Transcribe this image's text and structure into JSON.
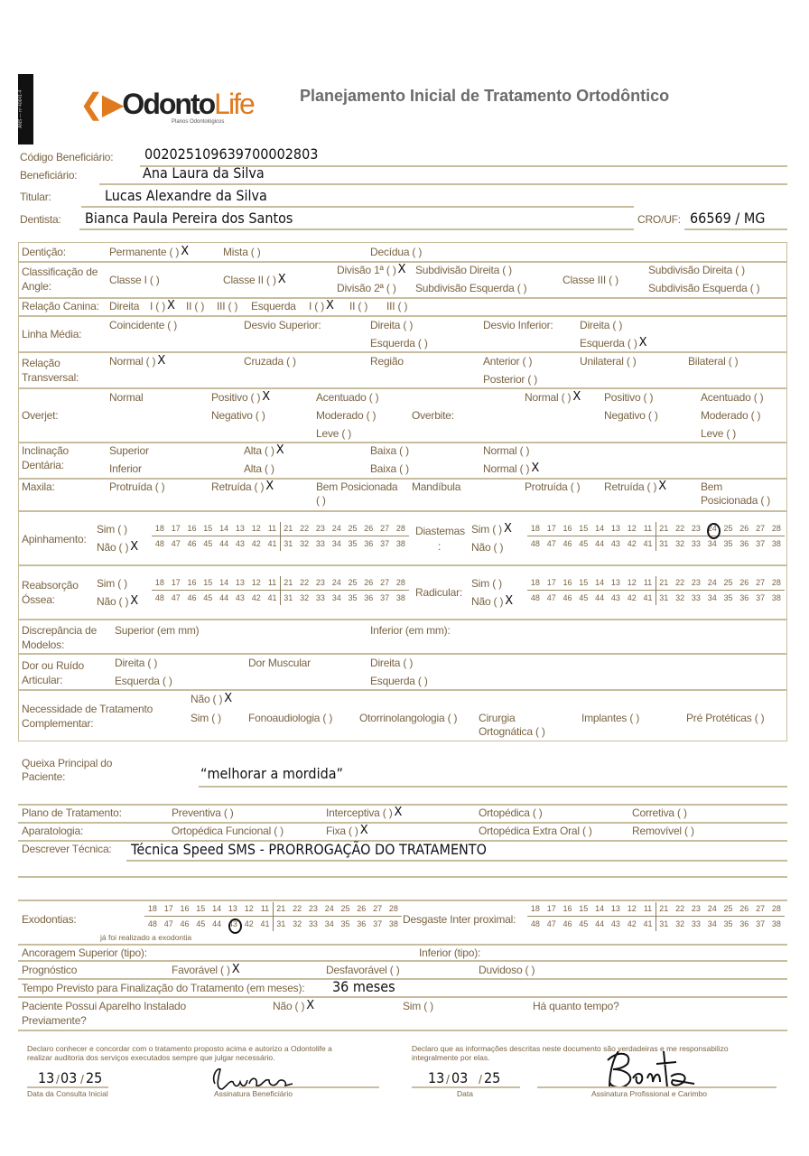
{
  "header": {
    "ans": "ANS — nº 40641-4",
    "logo": "OdontoLife",
    "logo_sub": "Planos Odontológicos",
    "title": "Planejamento Inicial de Tratamento Ortodôntico"
  },
  "fields": {
    "codigo_label": "Código Beneficiário:",
    "codigo": "002025109639700002803",
    "beneficiario_label": "Beneficiário:",
    "beneficiario": "Ana Laura da Silva",
    "titular_label": "Titular:",
    "titular": "Lucas Alexandre da Silva",
    "dentista_label": "Dentista:",
    "dentista": "Bianca Paula Pereira dos Santos",
    "cro_label": "CRO/UF:",
    "cro": "66569 / MG"
  },
  "mark": "X",
  "teeth": {
    "upper": [
      "18",
      "17",
      "16",
      "15",
      "14",
      "13",
      "12",
      "11",
      "21",
      "22",
      "23",
      "24",
      "25",
      "26",
      "27",
      "28"
    ],
    "lower": [
      "48",
      "47",
      "46",
      "45",
      "44",
      "43",
      "42",
      "41",
      "31",
      "32",
      "33",
      "34",
      "35",
      "36",
      "37",
      "38"
    ]
  },
  "exam": {
    "denticao": {
      "label": "Dentição:",
      "o1": "Permanente (  )",
      "o2": "Mista (  )",
      "o3": "Decídua (  )"
    },
    "angle": {
      "label1": "Classificação de",
      "label2": "Angle:",
      "c1": "Classe I (  )",
      "c2": "Classe II (  )",
      "d1": "Divisão 1ª (  )",
      "sd1": "Subdivisão Direita (  )",
      "d2": "Divisão 2ª (  )",
      "se1": "Subdivisão Esquerda (  )",
      "c3": "Classe III (  )",
      "sd2": "Subdivisão Direita (  )",
      "se2": "Subdivisão Esquerda (  )"
    },
    "canina": {
      "label": "Relação Canina:",
      "dir": "Direita",
      "d1": "I (  )",
      "d2": "II (  )",
      "d3": "III (  )",
      "esq": "Esquerda",
      "e1": "I (  )",
      "e2": "II (  )",
      "e3": "III (  )"
    },
    "linha": {
      "label": "Linha Média:",
      "coinc": "Coincidente (  )",
      "dsup": "Desvio Superior:",
      "dsup_d": "Direita (  )",
      "dsup_e": "Esquerda (  )",
      "dinf": "Desvio Inferior:",
      "dinf_d": "Direita (  )",
      "dinf_e": "Esquerda (  )"
    },
    "transversal": {
      "label1": "Relação",
      "label2": "Transversal:",
      "normal": "Normal (  )",
      "cruzada": "Cruzada (  )",
      "regiao": "Região",
      "anterior": "Anterior (  )",
      "posterior": "Posterior (  )",
      "unilateral": "Unilateral (  )",
      "bilateral": "Bilateral (  )"
    },
    "overjet": {
      "label": "Overjet:",
      "normal": "Normal",
      "positivo": "Positivo (  )",
      "negativo": "Negativo (  )",
      "acentuado": "Acentuado (  )",
      "moderado": "Moderado (  )",
      "leve": "Leve (  )"
    },
    "overbite": {
      "label": "Overbite:",
      "normal": "Normal (  )",
      "positivo": "Positivo (  )",
      "negativo": "Negativo (  )",
      "acentuado": "Acentuado (  )",
      "moderado": "Moderado (  )",
      "leve": "Leve (  )"
    },
    "inclinacao": {
      "label1": "Inclinação",
      "label2": "Dentária:",
      "superior": "Superior",
      "inferior": "Inferior",
      "alta1": "Alta (  )",
      "alta2": "Alta (  )",
      "baixa1": "Baixa (  )",
      "baixa2": "Baixa (  )",
      "normal1": "Normal (  )",
      "normal2": "Normal (  )"
    },
    "maxila": {
      "label": "Maxila:",
      "protruida": "Protruída (  )",
      "retruida": "Retruída (  )",
      "bem1": "Bem Posicionada",
      "bem1b": "(  )"
    },
    "mandibula": {
      "label": "Mandíbula",
      "protruida": "Protruída (  )",
      "retruida": "Retruída (  )",
      "bem1": "Bem",
      "bem1b": "Posicionada (  )"
    },
    "apinhamento": {
      "label": "Apinhamento:",
      "sim": "Sim (  )",
      "nao": "Não (  )"
    },
    "diastemas": {
      "label": "Diastemas",
      "colon": ":",
      "sim": "Sim (  )",
      "nao": "Não (  )"
    },
    "reabsorcao": {
      "label1": "Reabsorção",
      "label2": "Óssea:",
      "sim": "Sim (  )",
      "nao": "Não (  )"
    },
    "radicular": {
      "label": "Radicular:",
      "sim": "Sim (  )",
      "nao": "Não (  )"
    },
    "discrepancia": {
      "label1": "Discrepância de",
      "label2": "Modelos:",
      "superior": "Superior (em mm)",
      "inferior": "Inferior (em mm):"
    },
    "dor": {
      "label1": "Dor ou Ruído",
      "label2": "Articular:",
      "direita1": "Direita (  )",
      "esquerda1": "Esquerda (  )",
      "muscular": "Dor Muscular",
      "direita2": "Direita (  )",
      "esquerda2": "Esquerda (  )"
    },
    "necessidade": {
      "label1": "Necessidade de Tratamento",
      "label2": "Complementar:",
      "nao": "Não (  )",
      "sim": "Sim (  )",
      "fono": "Fonoaudiologia (  )",
      "otorrino": "Otorrinolangologia (  )",
      "cirurgia": "Cirurgia",
      "cirurgia2": "Ortognática (  )",
      "implantes": "Implantes (  )",
      "pre": "Pré Protéticas (  )"
    }
  },
  "plan": {
    "queixa_label1": "Queixa     Principal     do",
    "queixa_label2": "Paciente:",
    "queixa": "“melhorar a mordida”",
    "plano_label": "Plano de Tratamento:",
    "preventiva": "Preventiva (  )",
    "interceptiva": "Interceptiva (  )",
    "ortopedica": "Ortopédica (  )",
    "corretiva": "Corretiva (  )",
    "aparatologia_label": "Aparatologia:",
    "funcional": "Ortopédica Funcional (  )",
    "fixa": "Fixa (  )",
    "extra": "Ortopédica Extra Oral (  )",
    "removivel": "Removível (  )",
    "tecnica_label": "Descrever Técnica:",
    "tecnica": "Técnica Speed SMS - PRORROGAÇÃO DO TRATAMENTO",
    "exodontias_label": "Exodontias:",
    "exodontia_note": "já foi realizado a exodontia",
    "desgaste_label": "Desgaste Inter proximal:",
    "ancoragem_sup": "Ancoragem Superior (tipo):",
    "ancoragem_inf": "Inferior (tipo):",
    "prognostico_label": "Prognóstico",
    "favoravel": "Favorável (  )",
    "desfavoravel": "Desfavorável (  )",
    "duvidoso": "Duvidoso (  )",
    "tempo_label": "Tempo Previsto para Finalização do Tratamento (em meses):",
    "tempo": "36 meses",
    "aparelho_label1": "Paciente Possui Aparelho Instalado",
    "aparelho_label2": "Previamente?",
    "nao": "Não (  )",
    "sim": "Sim (  )",
    "quanto": "Há quanto tempo?"
  },
  "footer": {
    "decl_left1": "Declaro conhecer e concordar com o tratamento proposto acima e autorizo a Odontolife a",
    "decl_left2": "realizar auditoria dos serviços executados sempre que julgar necessário.",
    "decl_right1": "Declaro que as informações descritas neste documento são verdadeiras e me responsabilizo",
    "decl_right2": "integralmente por elas.",
    "d1": "13",
    "m1": "03",
    "y1": "25",
    "d2": "13",
    "m2": "03",
    "y2": "25",
    "data_consulta": "Data da Consulta Inicial",
    "assinatura_benef": "Assinatura Beneficiário",
    "data": "Data",
    "assinatura_prof": "Assinatura Profissional e Carimbo"
  }
}
